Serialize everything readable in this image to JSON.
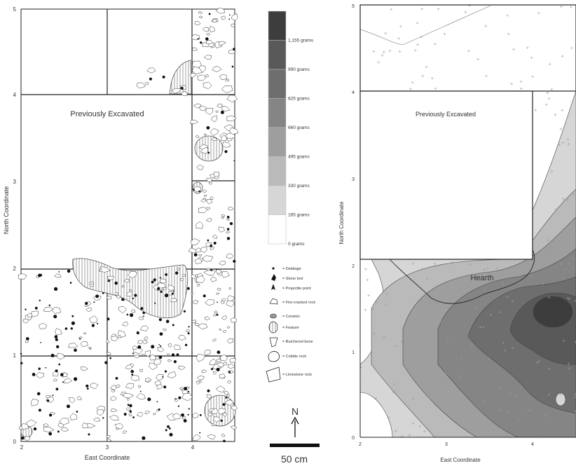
{
  "left_map": {
    "label": "Previously Excavated",
    "xlabel": "East Coordinate",
    "ylabel": "North Coordinate",
    "x_ticks": [
      "2",
      "3",
      "4"
    ],
    "y_ticks": [
      "0",
      "1",
      "2",
      "3",
      "4",
      "5"
    ]
  },
  "density_legend": {
    "entries": [
      {
        "label": "1,155 grams",
        "color": "#3d3d3d"
      },
      {
        "label": "990 grams",
        "color": "#595959"
      },
      {
        "label": "825 grams",
        "color": "#6e6e6e"
      },
      {
        "label": "660 grams",
        "color": "#858585"
      },
      {
        "label": "495 grams",
        "color": "#9e9e9e"
      },
      {
        "label": "330 grams",
        "color": "#bababa"
      },
      {
        "label": "165 grams",
        "color": "#d6d6d6"
      },
      {
        "label": "0 grams",
        "color": "#ffffff"
      }
    ]
  },
  "symbol_legend": {
    "items": [
      {
        "label": "= Debitage",
        "icon": "debitage-icon"
      },
      {
        "label": "= Stone tool",
        "icon": "stone-tool-icon"
      },
      {
        "label": "= Projectile point",
        "icon": "projectile-point-icon"
      },
      {
        "label": "= Fire-cracked rock",
        "icon": "fire-cracked-rock-icon"
      },
      {
        "label": "= Ceramic",
        "icon": "ceramic-icon"
      },
      {
        "label": "= Feature",
        "icon": "feature-icon"
      },
      {
        "label": "= Butchered bone",
        "icon": "butchered-bone-icon"
      },
      {
        "label": "= Cobble rock",
        "icon": "cobble-rock-icon"
      },
      {
        "label": "= Limestone rock",
        "icon": "limestone-rock-icon"
      }
    ]
  },
  "north_arrow": {
    "label": "N"
  },
  "scale_bar": {
    "label": "50 cm"
  },
  "right_map": {
    "label": "Previously Excavated",
    "hearth_label": "Hearth",
    "xlabel": "East Coordinate",
    "ylabel": "North Coordinate",
    "x_ticks": [
      "2",
      "3",
      "4"
    ],
    "y_ticks": [
      "0",
      "1",
      "2",
      "3",
      "4",
      "5"
    ]
  }
}
